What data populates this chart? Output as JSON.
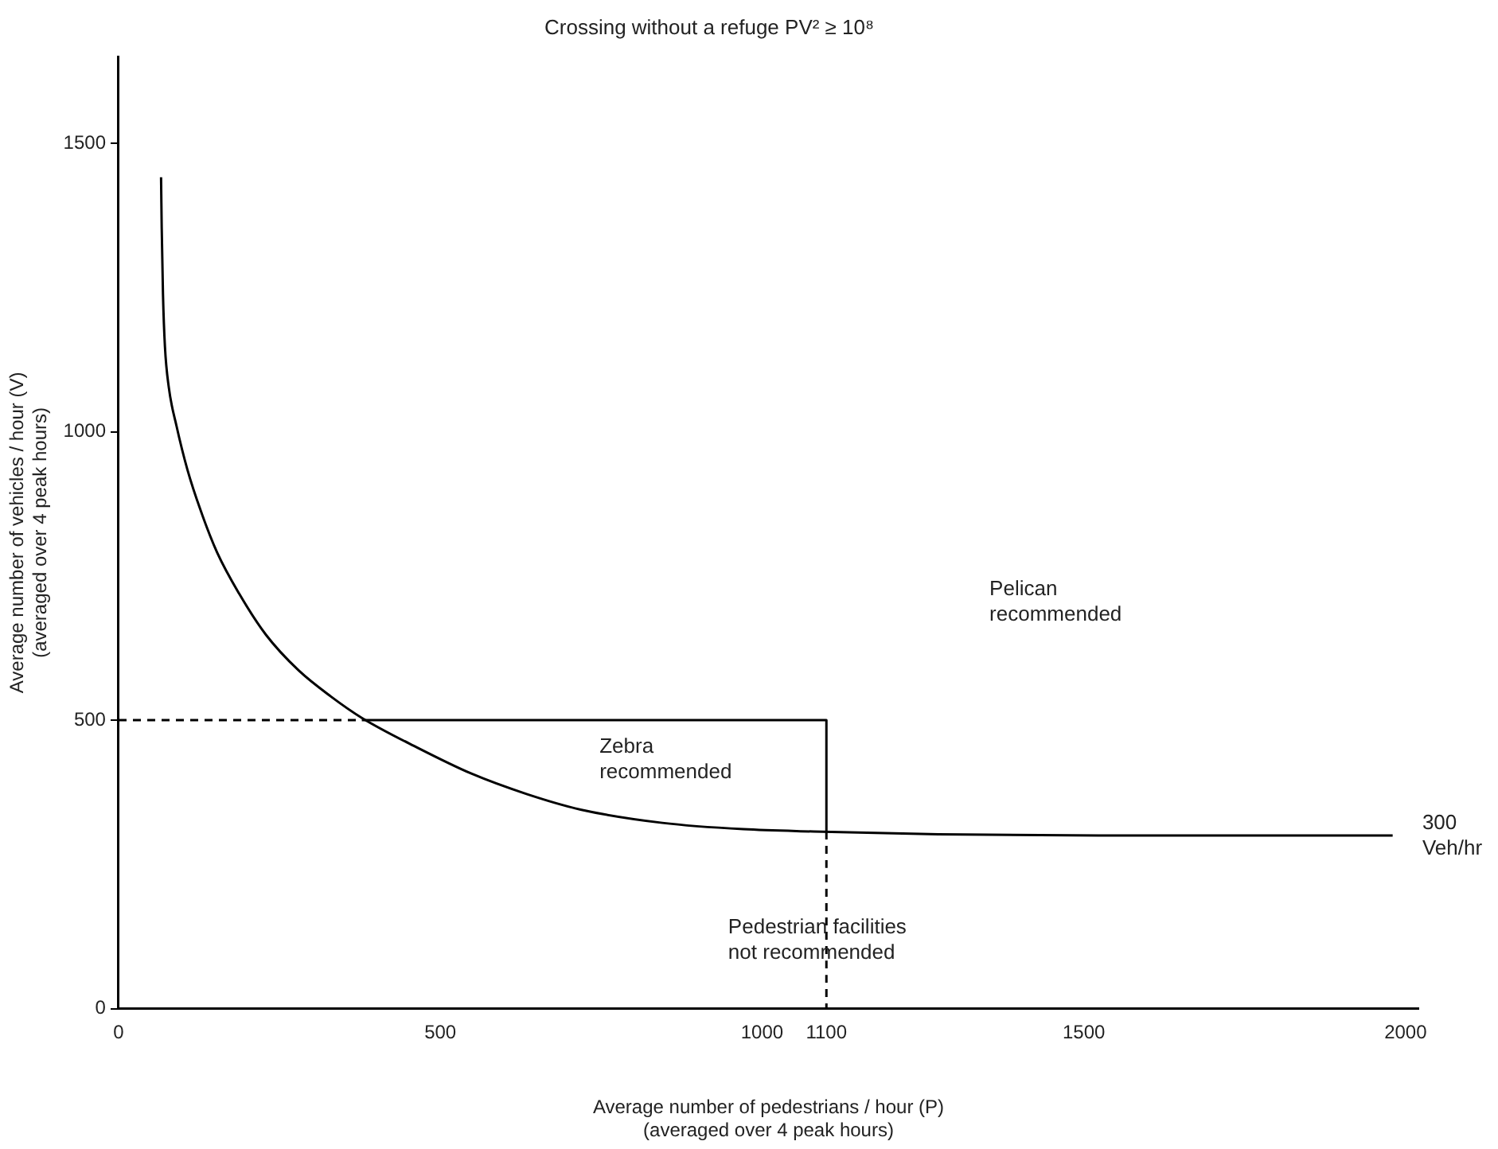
{
  "chart_data": {
    "type": "line",
    "title": "Crossing without a refuge PV² ≥ 10⁸",
    "xlabel": "Average number of pedestrians / hour (P)\n(averaged over 4 peak hours)",
    "ylabel": "Average number of vehicles / hour (V)\n(averaged over 4 peak hours)",
    "series": [
      {
        "color": "#000000",
        "line_style": "solid",
        "x": [
          66,
          67,
          69,
          72,
          78,
          90,
          107,
          128,
          153,
          187,
          229,
          280,
          330,
          378,
          465,
          549,
          634,
          718,
          845,
          971,
          1080,
          1274,
          1594,
          1980
        ],
        "values": [
          1441,
          1354,
          1238,
          1148,
          1077,
          1010,
          934,
          862,
          791,
          720,
          648,
          586,
          541,
          504,
          452,
          407,
          372,
          345,
          322,
          311,
          307,
          302,
          300,
          300
        ]
      },
      {
        "color": "#000000",
        "line_style": "solid",
        "x": [
          378,
          1100,
          1100
        ],
        "values": [
          500,
          500,
          307
        ]
      },
      {
        "color": "#000000",
        "line_style": "dashed",
        "x": [
          0,
          378
        ],
        "values": [
          500,
          500
        ]
      },
      {
        "color": "#000000",
        "line_style": "dashed",
        "x": [
          1100,
          1100
        ],
        "values": [
          307,
          0
        ]
      }
    ],
    "xlim": [
      0,
      2020
    ],
    "ylim": [
      0,
      1650
    ],
    "xticks": [
      0,
      500,
      1000,
      1100,
      1500,
      2000
    ],
    "yticks": [
      0,
      500,
      1000,
      1500
    ],
    "grid": false,
    "legend": false,
    "marker": "none",
    "annotations": [
      "Zebra\nrecommended",
      "Pelican\nrecommended",
      "Pedestrian facilities\nnot recommended",
      "300\nVeh/hr"
    ]
  }
}
